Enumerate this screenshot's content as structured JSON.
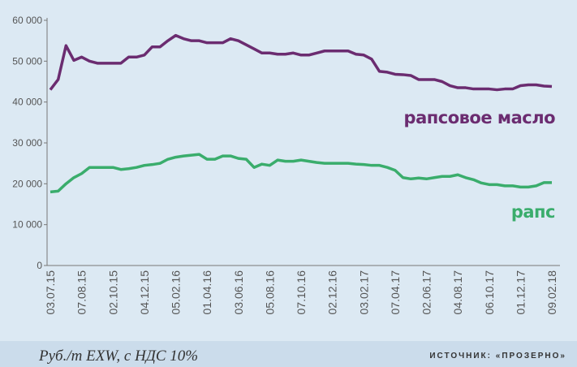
{
  "chart_data": {
    "type": "line",
    "categories": [
      "03.07.15",
      null,
      null,
      null,
      "07.08.15",
      null,
      null,
      null,
      "02.10.15",
      null,
      null,
      null,
      "04.12.15",
      null,
      null,
      null,
      "05.02.16",
      null,
      null,
      null,
      "01.04.16",
      null,
      null,
      null,
      "03.06.16",
      null,
      null,
      null,
      "05.08.16",
      null,
      null,
      null,
      "07.10.16",
      null,
      null,
      null,
      "02.12.16",
      null,
      null,
      null,
      "03.02.17",
      null,
      null,
      null,
      "07.04.17",
      null,
      null,
      null,
      "02.06.17",
      null,
      null,
      null,
      "04.08.17",
      null,
      null,
      null,
      "06.10.17",
      null,
      null,
      null,
      "01.12.17",
      null,
      null,
      null,
      "09.02.18"
    ],
    "series": [
      {
        "name": "рапсовое масло",
        "color": "#6b2c70",
        "values": [
          43000,
          45500,
          53800,
          50200,
          51000,
          50000,
          49500,
          49500,
          49500,
          49500,
          51000,
          51000,
          51500,
          53500,
          53500,
          55000,
          56300,
          55500,
          55000,
          55000,
          54500,
          54500,
          54500,
          55500,
          55000,
          54000,
          53000,
          52000,
          52000,
          51700,
          51700,
          52000,
          51500,
          51500,
          52000,
          52500,
          52500,
          52500,
          52500,
          51700,
          51500,
          50500,
          47500,
          47300,
          46800,
          46700,
          46500,
          45500,
          45500,
          45500,
          45000,
          44000,
          43500,
          43500,
          43200,
          43200,
          43200,
          43000,
          43200,
          43200,
          44000,
          44200,
          44200,
          43900,
          43800
        ]
      },
      {
        "name": "рапс",
        "color": "#3aad6c",
        "values": [
          18000,
          18200,
          20000,
          21500,
          22500,
          24000,
          24000,
          24000,
          24000,
          23500,
          23700,
          24000,
          24500,
          24700,
          25000,
          26000,
          26500,
          26800,
          27000,
          27200,
          26000,
          26000,
          26800,
          26800,
          26200,
          26000,
          24000,
          24800,
          24500,
          25800,
          25500,
          25500,
          25800,
          25500,
          25200,
          25000,
          25000,
          25000,
          25000,
          24800,
          24700,
          24500,
          24500,
          24000,
          23300,
          21500,
          21200,
          21400,
          21200,
          21500,
          21800,
          21800,
          22200,
          21500,
          21000,
          20200,
          19800,
          19800,
          19500,
          19500,
          19200,
          19200,
          19500,
          20300,
          20300
        ]
      }
    ],
    "ylim": [
      0,
      60000
    ],
    "yticks": [
      0,
      {
        "value": 10000,
        "label": "10 000"
      },
      {
        "value": 20000,
        "label": "20 000"
      },
      {
        "value": 30000,
        "label": "30 000"
      },
      {
        "value": 40000,
        "label": "40 000"
      },
      {
        "value": 50000,
        "label": "50 000"
      },
      {
        "value": 60000,
        "label": "60 000"
      }
    ],
    "grid": false,
    "unit_note": "Руб./т EXW, с НДС 10%",
    "source": "ИСТОЧНИК: «ПРОЗЕРНО»"
  }
}
